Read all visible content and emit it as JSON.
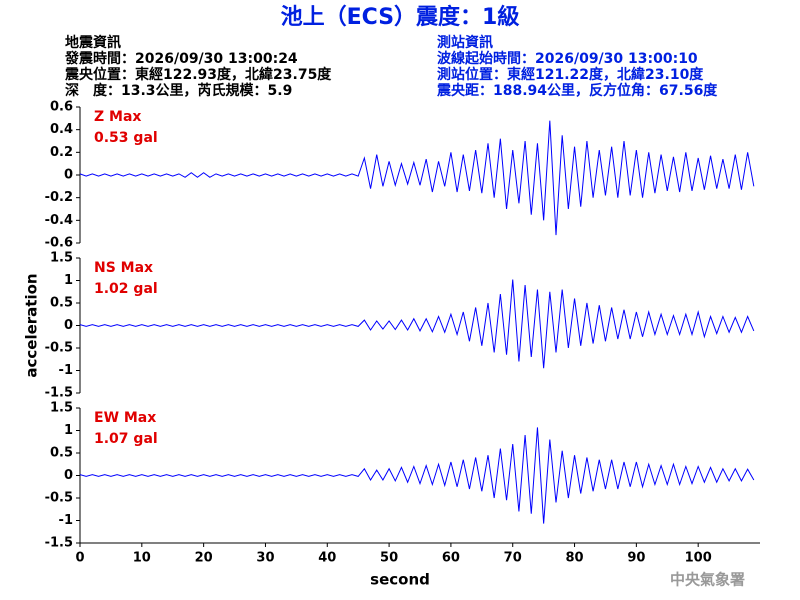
{
  "header": {
    "title": "池上（ECS）震度：1級",
    "left_lines": [
      "地震資訊",
      "發震時間：2026/09/30 13:00:24",
      "震央位置：東經122.93度，北緯23.75度",
      "深　度：13.3公里，芮氏規模：5.9"
    ],
    "right_lines": [
      "測站資訊",
      "波線起始時間：2026/09/30 13:00:10",
      "測站位置：東經121.22度，北緯23.10度",
      "震央距：188.94公里，反方位角：67.56度"
    ]
  },
  "footer": "中央氣象署",
  "chart_data": [
    {
      "type": "line",
      "annotations": [
        "Z Max",
        "0.53 gal"
      ],
      "annotation_color": "#e00000",
      "xlim": [
        0,
        110
      ],
      "ylim": [
        -0.6,
        0.6
      ],
      "yticks": [
        0.6,
        0.4,
        0.2,
        0,
        -0.2,
        -0.4,
        -0.6
      ],
      "x": [
        0,
        1,
        2,
        3,
        4,
        5,
        6,
        7,
        8,
        9,
        10,
        11,
        12,
        13,
        14,
        15,
        16,
        17,
        18,
        19,
        20,
        21,
        22,
        23,
        24,
        25,
        26,
        27,
        28,
        29,
        30,
        31,
        32,
        33,
        34,
        35,
        36,
        37,
        38,
        39,
        40,
        41,
        42,
        43,
        44,
        45,
        46,
        47,
        48,
        49,
        50,
        51,
        52,
        53,
        54,
        55,
        56,
        57,
        58,
        59,
        60,
        61,
        62,
        63,
        64,
        65,
        66,
        67,
        68,
        69,
        70,
        71,
        72,
        73,
        74,
        75,
        76,
        77,
        78,
        79,
        80,
        81,
        82,
        83,
        84,
        85,
        86,
        87,
        88,
        89,
        90,
        91,
        92,
        93,
        94,
        95,
        96,
        97,
        98,
        99,
        100,
        101,
        102,
        103,
        104,
        105,
        106,
        107,
        108,
        109
      ],
      "series": [
        {
          "color": "#0000ff",
          "values": [
            0.01,
            -0.01,
            0.01,
            -0.01,
            0.01,
            -0.01,
            0.01,
            -0.01,
            0.01,
            -0.01,
            0.01,
            -0.01,
            0.01,
            -0.01,
            0.01,
            -0.01,
            0.01,
            -0.02,
            0.02,
            -0.02,
            0.02,
            -0.02,
            0.01,
            -0.01,
            0.01,
            -0.01,
            0.01,
            -0.01,
            0.01,
            -0.01,
            0.01,
            -0.01,
            0.01,
            -0.01,
            0.01,
            -0.01,
            0.01,
            -0.01,
            0.01,
            -0.01,
            0.01,
            -0.01,
            0.01,
            -0.01,
            0.01,
            -0.01,
            0.15,
            -0.12,
            0.18,
            -0.1,
            0.12,
            -0.09,
            0.1,
            -0.08,
            0.11,
            -0.09,
            0.14,
            -0.15,
            0.12,
            -0.1,
            0.2,
            -0.15,
            0.18,
            -0.14,
            0.22,
            -0.16,
            0.28,
            -0.2,
            0.32,
            -0.3,
            0.22,
            -0.25,
            0.3,
            -0.35,
            0.28,
            -0.4,
            0.48,
            -0.53,
            0.35,
            -0.3,
            0.25,
            -0.28,
            0.3,
            -0.2,
            0.22,
            -0.18,
            0.25,
            -0.2,
            0.3,
            -0.18,
            0.22,
            -0.2,
            0.2,
            -0.16,
            0.18,
            -0.14,
            0.16,
            -0.15,
            0.2,
            -0.14,
            0.15,
            -0.13,
            0.17,
            -0.12,
            0.14,
            -0.12,
            0.18,
            -0.13,
            0.2,
            -0.1
          ]
        }
      ]
    },
    {
      "type": "line",
      "annotations": [
        "NS Max",
        "1.02 gal"
      ],
      "annotation_color": "#e00000",
      "ylabel": "acceleration",
      "xlim": [
        0,
        110
      ],
      "ylim": [
        -1.5,
        1.5
      ],
      "yticks": [
        1.5,
        1,
        0.5,
        0,
        -0.5,
        -1,
        -1.5
      ],
      "x": [
        0,
        1,
        2,
        3,
        4,
        5,
        6,
        7,
        8,
        9,
        10,
        11,
        12,
        13,
        14,
        15,
        16,
        17,
        18,
        19,
        20,
        21,
        22,
        23,
        24,
        25,
        26,
        27,
        28,
        29,
        30,
        31,
        32,
        33,
        34,
        35,
        36,
        37,
        38,
        39,
        40,
        41,
        42,
        43,
        44,
        45,
        46,
        47,
        48,
        49,
        50,
        51,
        52,
        53,
        54,
        55,
        56,
        57,
        58,
        59,
        60,
        61,
        62,
        63,
        64,
        65,
        66,
        67,
        68,
        69,
        70,
        71,
        72,
        73,
        74,
        75,
        76,
        77,
        78,
        79,
        80,
        81,
        82,
        83,
        84,
        85,
        86,
        87,
        88,
        89,
        90,
        91,
        92,
        93,
        94,
        95,
        96,
        97,
        98,
        99,
        100,
        101,
        102,
        103,
        104,
        105,
        106,
        107,
        108,
        109
      ],
      "series": [
        {
          "color": "#0000ff",
          "values": [
            0.02,
            -0.02,
            0.02,
            -0.02,
            0.02,
            -0.02,
            0.02,
            -0.02,
            0.02,
            -0.02,
            0.02,
            -0.02,
            0.02,
            -0.02,
            0.02,
            -0.02,
            0.02,
            -0.02,
            0.02,
            -0.02,
            0.02,
            -0.02,
            0.02,
            -0.02,
            0.02,
            -0.02,
            0.02,
            -0.02,
            0.02,
            -0.02,
            0.02,
            -0.02,
            0.02,
            -0.02,
            0.02,
            -0.02,
            0.02,
            -0.02,
            0.02,
            -0.02,
            0.02,
            -0.02,
            0.02,
            -0.02,
            0.02,
            -0.02,
            0.12,
            -0.1,
            0.1,
            -0.08,
            0.1,
            -0.09,
            0.12,
            -0.1,
            0.15,
            -0.12,
            0.15,
            -0.14,
            0.2,
            -0.15,
            0.25,
            -0.2,
            0.3,
            -0.35,
            0.4,
            -0.45,
            0.5,
            -0.6,
            0.7,
            -0.65,
            1.02,
            -0.8,
            0.9,
            -0.7,
            0.8,
            -0.95,
            0.75,
            -0.6,
            0.8,
            -0.5,
            0.6,
            -0.45,
            0.5,
            -0.4,
            0.45,
            -0.35,
            0.4,
            -0.3,
            0.35,
            -0.3,
            0.3,
            -0.25,
            0.3,
            -0.2,
            0.25,
            -0.2,
            0.22,
            -0.2,
            0.25,
            -0.2,
            0.3,
            -0.25,
            0.2,
            -0.18,
            0.2,
            -0.15,
            0.18,
            -0.15,
            0.2,
            -0.12
          ]
        }
      ]
    },
    {
      "type": "line",
      "annotations": [
        "EW Max",
        "1.07 gal"
      ],
      "annotation_color": "#e00000",
      "xlabel": "second",
      "xlim": [
        0,
        110
      ],
      "ylim": [
        -1.5,
        1.5
      ],
      "yticks": [
        1.5,
        1,
        0.5,
        0,
        -0.5,
        -1,
        -1.5
      ],
      "xticks": [
        0,
        10,
        20,
        30,
        40,
        50,
        60,
        70,
        80,
        90,
        100
      ],
      "x": [
        0,
        1,
        2,
        3,
        4,
        5,
        6,
        7,
        8,
        9,
        10,
        11,
        12,
        13,
        14,
        15,
        16,
        17,
        18,
        19,
        20,
        21,
        22,
        23,
        24,
        25,
        26,
        27,
        28,
        29,
        30,
        31,
        32,
        33,
        34,
        35,
        36,
        37,
        38,
        39,
        40,
        41,
        42,
        43,
        44,
        45,
        46,
        47,
        48,
        49,
        50,
        51,
        52,
        53,
        54,
        55,
        56,
        57,
        58,
        59,
        60,
        61,
        62,
        63,
        64,
        65,
        66,
        67,
        68,
        69,
        70,
        71,
        72,
        73,
        74,
        75,
        76,
        77,
        78,
        79,
        80,
        81,
        82,
        83,
        84,
        85,
        86,
        87,
        88,
        89,
        90,
        91,
        92,
        93,
        94,
        95,
        96,
        97,
        98,
        99,
        100,
        101,
        102,
        103,
        104,
        105,
        106,
        107,
        108,
        109
      ],
      "series": [
        {
          "color": "#0000ff",
          "values": [
            0.02,
            -0.02,
            0.02,
            -0.02,
            0.02,
            -0.02,
            0.02,
            -0.02,
            0.02,
            -0.02,
            0.02,
            -0.02,
            0.02,
            -0.02,
            0.02,
            -0.02,
            0.02,
            -0.02,
            0.02,
            -0.02,
            0.02,
            -0.02,
            0.02,
            -0.02,
            0.02,
            -0.02,
            0.02,
            -0.02,
            0.02,
            -0.02,
            0.02,
            -0.02,
            0.02,
            -0.02,
            0.02,
            -0.02,
            0.02,
            -0.02,
            0.02,
            -0.02,
            0.02,
            -0.02,
            0.02,
            -0.02,
            0.02,
            -0.02,
            0.15,
            -0.1,
            0.12,
            -0.1,
            0.15,
            -0.12,
            0.18,
            -0.15,
            0.2,
            -0.18,
            0.22,
            -0.2,
            0.25,
            -0.22,
            0.3,
            -0.25,
            0.35,
            -0.3,
            0.4,
            -0.35,
            0.45,
            -0.5,
            0.6,
            -0.55,
            0.7,
            -0.8,
            0.9,
            -0.85,
            1.07,
            -1.07,
            0.8,
            -0.6,
            0.55,
            -0.5,
            0.45,
            -0.4,
            0.4,
            -0.35,
            0.35,
            -0.3,
            0.35,
            -0.3,
            0.3,
            -0.25,
            0.3,
            -0.25,
            0.25,
            -0.2,
            0.22,
            -0.2,
            0.25,
            -0.2,
            0.2,
            -0.18,
            0.2,
            -0.15,
            0.18,
            -0.15,
            0.15,
            -0.12,
            0.15,
            -0.12,
            0.14,
            -0.1
          ]
        }
      ]
    }
  ]
}
